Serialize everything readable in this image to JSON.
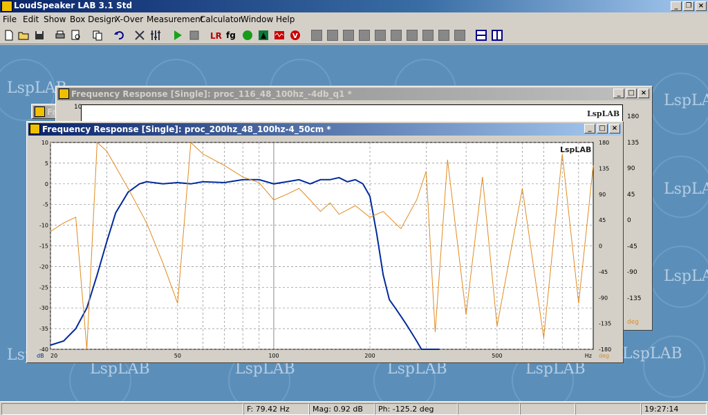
{
  "app": {
    "title": "LoudSpeaker LAB 3.1 Std"
  },
  "menu": [
    "File",
    "Edit",
    "Show",
    "Box Design",
    "X-Over",
    "Measurement",
    "Calculator",
    "Window",
    "Help"
  ],
  "watermark": "LspLAB",
  "windows": {
    "back": {
      "title": "Frequency Response [Single]: proc_116_48_100hz_-4db_q1 *"
    },
    "front": {
      "title": "Frequency Response [Single]: proc_200hz_48_100hz-4_50cm *"
    },
    "third_partial": {
      "title": "Fr"
    }
  },
  "chart_data": {
    "type": "line",
    "x_scale": "log",
    "xlim": [
      20,
      1000
    ],
    "x_ticks": [
      "20",
      "50",
      "100",
      "200",
      "500",
      "Hz"
    ],
    "y_left_ticks": [
      "10",
      "5",
      "0",
      "-5",
      "-10",
      "-15",
      "-20",
      "-25",
      "-30",
      "-35",
      "-40"
    ],
    "y_left_unit": "dB",
    "ylim_left": [
      -40,
      10
    ],
    "y_right_ticks": [
      "180",
      "135",
      "90",
      "45",
      "0",
      "-45",
      "-90",
      "-135",
      "-180"
    ],
    "y_right_unit": "deg",
    "ylim_right": [
      -180,
      180
    ],
    "back_right_ticks": [
      "180",
      "135",
      "90",
      "45",
      "0",
      "-45",
      "-90",
      "-135",
      "-180"
    ],
    "back_top_tick": "10",
    "series": [
      {
        "color": "#002a9a",
        "axis": "left",
        "x": [
          20,
          22,
          24,
          26,
          28,
          30,
          32,
          35,
          38,
          40,
          45,
          50,
          55,
          60,
          70,
          80,
          90,
          100,
          110,
          120,
          130,
          140,
          150,
          160,
          170,
          180,
          190,
          200,
          210,
          220,
          230,
          240,
          250,
          260,
          270,
          280,
          290,
          300,
          310,
          320,
          330
        ],
        "y": [
          -39,
          -38,
          -35,
          -30,
          -22,
          -14,
          -7,
          -2,
          0,
          0.5,
          0,
          0.3,
          0,
          0.5,
          0.3,
          1,
          1,
          0,
          0.5,
          1,
          0,
          1,
          1,
          1.5,
          0.5,
          1,
          0,
          -3,
          -12,
          -22,
          -28,
          -30,
          -32,
          -34,
          -36,
          -38,
          -40,
          -40,
          -40,
          -40,
          -40
        ]
      },
      {
        "color": "#e08a1e",
        "axis": "right",
        "x": [
          20,
          22,
          24,
          26,
          28,
          30,
          35,
          40,
          45,
          50,
          55,
          60,
          70,
          80,
          90,
          100,
          110,
          120,
          130,
          140,
          150,
          160,
          180,
          200,
          220,
          250,
          280,
          300,
          320,
          350,
          400,
          450,
          500,
          600,
          700,
          800,
          900,
          1000
        ],
        "y": [
          25,
          40,
          50,
          -180,
          180,
          165,
          100,
          40,
          -30,
          -100,
          180,
          160,
          140,
          120,
          110,
          80,
          90,
          100,
          80,
          60,
          75,
          55,
          70,
          50,
          60,
          30,
          80,
          130,
          -150,
          150,
          -120,
          120,
          -140,
          100,
          -160,
          160,
          -100,
          140
        ]
      }
    ]
  },
  "status": {
    "freq": "F: 79.42 Hz",
    "mag": "Mag: 0.92 dB",
    "phase": "Ph: -125.2 deg",
    "time": "19:27:14"
  }
}
